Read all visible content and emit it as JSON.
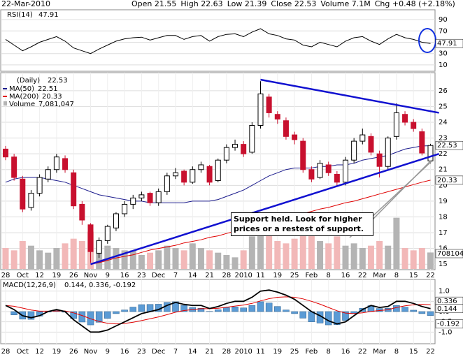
{
  "header": {
    "date": "22-Mar-2010",
    "items": [
      {
        "label": "Open",
        "value": 21.55
      },
      {
        "label": "High",
        "value": 22.63
      },
      {
        "label": "Low",
        "value": 21.39
      },
      {
        "label": "Close",
        "value": 22.53
      },
      {
        "label": "Volume",
        "value": "7.1M"
      },
      {
        "label": "Chg",
        "value": "+0.48 (+2.18%)"
      }
    ]
  },
  "chart_data": {
    "type": "stock",
    "categories": [
      "28",
      null,
      "Oct",
      null,
      "12",
      null,
      "19",
      null,
      "26",
      null,
      "Nov",
      null,
      "9",
      null,
      "16",
      null,
      "23",
      null,
      "Dec",
      null,
      "7",
      null,
      "14",
      null,
      "21",
      null,
      "28",
      null,
      "2010",
      null,
      "11",
      null,
      "19",
      null,
      "25",
      null,
      "Feb",
      null,
      "8",
      null,
      "16",
      null,
      "22",
      null,
      "Mar",
      null,
      "8",
      null,
      "15",
      null,
      "22"
    ],
    "rsi": {
      "label": "RSI(14)",
      "value": 47.91,
      "color": "#000000",
      "ylim": [
        0,
        100
      ],
      "yticks": [
        10,
        30,
        50,
        70,
        90
      ],
      "values": [
        55,
        45,
        35,
        42,
        50,
        55,
        60,
        52,
        40,
        35,
        30,
        38,
        45,
        52,
        56,
        58,
        59,
        54,
        58,
        62,
        62,
        55,
        60,
        62,
        52,
        60,
        64,
        65,
        60,
        68,
        74,
        65,
        62,
        56,
        54,
        45,
        42,
        50,
        46,
        42,
        52,
        58,
        60,
        52,
        46,
        56,
        64,
        58,
        55,
        50,
        47.91
      ]
    },
    "price": {
      "label": "(Daily)",
      "value": 22.53,
      "ylim": [
        14.7,
        27.1
      ],
      "yticks": [
        15,
        16,
        17,
        18,
        19,
        20,
        21,
        22,
        23,
        24,
        25,
        26
      ],
      "up_color": "#000000",
      "down_color": "#c8102e",
      "open": [
        22.3,
        21.8,
        20.4,
        18.6,
        19.5,
        20.4,
        21.0,
        21.7,
        20.8,
        18.8,
        17.5,
        15.7,
        16.5,
        17.3,
        18.2,
        18.8,
        19.2,
        19.5,
        18.9,
        19.6,
        20.6,
        20.9,
        20.2,
        21.0,
        21.2,
        20.3,
        21.6,
        22.4,
        22.6,
        22.1,
        23.8,
        25.6,
        24.5,
        24.1,
        23.2,
        22.8,
        21.0,
        20.5,
        21.3,
        20.7,
        20.2,
        21.6,
        22.8,
        23.1,
        22.0,
        21.2,
        23.1,
        24.5,
        24.0,
        23.4,
        21.55
      ],
      "high": [
        22.5,
        22.0,
        20.6,
        19.7,
        20.7,
        21.2,
        22.0,
        21.9,
        21.0,
        19.0,
        17.6,
        16.7,
        17.5,
        18.3,
        19.0,
        19.4,
        19.6,
        19.6,
        19.8,
        20.8,
        21.1,
        21.0,
        21.2,
        21.5,
        21.3,
        21.7,
        22.6,
        22.9,
        22.8,
        24.0,
        26.6,
        25.8,
        24.7,
        24.3,
        23.4,
        23.0,
        21.2,
        21.6,
        21.5,
        20.9,
        21.8,
        23.0,
        23.6,
        23.3,
        22.2,
        23.1,
        25.2,
        24.7,
        24.2,
        23.6,
        22.63
      ],
      "low": [
        21.6,
        20.3,
        18.3,
        18.4,
        19.3,
        20.2,
        20.8,
        20.8,
        18.5,
        17.5,
        15.1,
        15.4,
        16.3,
        17.1,
        18.0,
        18.5,
        19.0,
        18.7,
        18.7,
        19.4,
        20.4,
        20.0,
        20.1,
        20.8,
        20.0,
        20.2,
        21.4,
        22.2,
        21.8,
        22.0,
        23.6,
        24.3,
        23.9,
        22.9,
        22.6,
        20.8,
        20.2,
        20.4,
        20.6,
        19.9,
        20.0,
        21.4,
        22.6,
        21.9,
        20.5,
        21.0,
        22.9,
        23.8,
        23.4,
        21.9,
        21.39
      ],
      "close": [
        21.8,
        20.5,
        18.5,
        19.5,
        20.5,
        21.0,
        21.8,
        21.0,
        18.7,
        17.8,
        15.8,
        16.5,
        17.4,
        18.2,
        18.8,
        19.2,
        19.4,
        18.9,
        19.6,
        20.6,
        20.8,
        20.2,
        21.0,
        21.3,
        20.2,
        21.6,
        22.4,
        22.6,
        22.0,
        23.8,
        25.8,
        24.6,
        24.2,
        23.1,
        22.9,
        21.0,
        20.4,
        21.4,
        20.8,
        20.2,
        21.6,
        22.8,
        23.2,
        22.1,
        21.2,
        23.0,
        24.6,
        24.0,
        23.6,
        22.05,
        22.53
      ]
    },
    "ma50": {
      "name": "MA(50)",
      "value": 22.51,
      "color": "#1a1a8c",
      "values": [
        20.2,
        20.4,
        20.5,
        20.5,
        20.5,
        20.4,
        20.3,
        20.2,
        20.0,
        19.8,
        19.6,
        19.4,
        19.3,
        19.2,
        19.1,
        19.0,
        19.0,
        18.9,
        18.9,
        18.9,
        18.9,
        18.9,
        19.0,
        19.0,
        19.0,
        19.1,
        19.3,
        19.5,
        19.7,
        20.0,
        20.3,
        20.6,
        20.8,
        21.0,
        21.1,
        21.1,
        21.1,
        21.2,
        21.2,
        21.3,
        21.3,
        21.4,
        21.6,
        21.7,
        21.8,
        21.9,
        22.1,
        22.3,
        22.4,
        22.5,
        22.51
      ]
    },
    "ma200": {
      "name": "MA(200)",
      "value": 20.33,
      "color": "#e00000",
      "values": [
        null,
        null,
        null,
        null,
        null,
        null,
        null,
        null,
        null,
        null,
        15.0,
        15.1,
        15.25,
        15.4,
        15.5,
        15.6,
        15.75,
        15.9,
        16.0,
        16.1,
        16.2,
        16.35,
        16.45,
        16.55,
        16.7,
        16.8,
        16.95,
        17.1,
        17.25,
        17.4,
        17.55,
        17.7,
        17.85,
        17.95,
        18.1,
        18.2,
        18.35,
        18.5,
        18.6,
        18.75,
        18.9,
        19.0,
        19.15,
        19.3,
        19.45,
        19.6,
        19.75,
        19.9,
        20.05,
        20.2,
        20.33
      ]
    },
    "volume": {
      "name": "Volume",
      "value_label": "7,081,047",
      "up_color": "#b4b4b4",
      "down_color": "#f2b8b8",
      "ylim": [
        0,
        30000000
      ],
      "values": [
        9000000,
        8000000,
        12000000,
        10000000,
        8000000,
        7000000,
        9000000,
        11000000,
        13000000,
        12000000,
        16000000,
        12000000,
        10000000,
        9000000,
        8000000,
        8000000,
        6000000,
        7000000,
        8000000,
        10000000,
        9000000,
        8000000,
        11000000,
        9000000,
        8000000,
        7000000,
        6000000,
        5000000,
        8000000,
        14000000,
        18000000,
        15000000,
        12000000,
        11000000,
        13000000,
        18000000,
        16000000,
        12000000,
        11000000,
        14000000,
        10000000,
        11000000,
        9000000,
        10000000,
        12000000,
        10000000,
        22000000,
        9000000,
        8000000,
        9000000,
        7081047
      ]
    },
    "macd": {
      "label": "MACD(12,26,9)",
      "value_label": "0.144, 0.336, -0.192",
      "ylim": [
        -1.5,
        1.5
      ],
      "yticks": [
        {
          "value": 1,
          "label": "1.0"
        },
        0.5,
        {
          "value": 0,
          "label": "0.0"
        },
        -0.5,
        {
          "value": -1,
          "label": "-1.0"
        }
      ],
      "tags": [
        0.336,
        0.144,
        -0.192
      ],
      "line": {
        "color": "#000000",
        "values": [
          0.3,
          0.1,
          -0.2,
          -0.3,
          -0.2,
          0.0,
          0.1,
          0.0,
          -0.4,
          -0.7,
          -1.0,
          -1.0,
          -0.9,
          -0.7,
          -0.5,
          -0.3,
          -0.1,
          0.0,
          0.1,
          0.3,
          0.45,
          0.35,
          0.3,
          0.3,
          0.15,
          0.25,
          0.4,
          0.5,
          0.5,
          0.7,
          1.0,
          1.05,
          0.95,
          0.8,
          0.6,
          0.3,
          0.0,
          -0.2,
          -0.45,
          -0.6,
          -0.5,
          -0.2,
          0.1,
          0.3,
          0.2,
          0.25,
          0.5,
          0.5,
          0.4,
          0.25,
          0.144
        ]
      },
      "signal": {
        "color": "#e00000",
        "values": [
          0.3,
          0.26,
          0.17,
          0.08,
          0.02,
          0.02,
          0.03,
          0.03,
          -0.06,
          -0.19,
          -0.35,
          -0.48,
          -0.57,
          -0.6,
          -0.58,
          -0.52,
          -0.44,
          -0.35,
          -0.26,
          -0.15,
          -0.03,
          0.05,
          0.1,
          0.14,
          0.14,
          0.16,
          0.21,
          0.27,
          0.32,
          0.4,
          0.52,
          0.63,
          0.7,
          0.72,
          0.7,
          0.62,
          0.5,
          0.36,
          0.2,
          0.04,
          -0.07,
          -0.1,
          -0.06,
          0.01,
          0.05,
          0.09,
          0.2,
          0.28,
          0.33,
          0.35,
          0.336
        ]
      },
      "histogram": {
        "color": "#5b9bd5",
        "values": [
          0,
          -0.16,
          -0.37,
          -0.38,
          -0.22,
          -0.02,
          0.07,
          -0.03,
          -0.34,
          -0.51,
          -0.65,
          -0.52,
          -0.33,
          -0.1,
          0.08,
          0.22,
          0.34,
          0.35,
          0.36,
          0.45,
          0.48,
          0.3,
          0.2,
          0.16,
          0.01,
          0.09,
          0.19,
          0.23,
          0.18,
          0.3,
          0.48,
          0.42,
          0.25,
          0.08,
          -0.1,
          -0.32,
          -0.5,
          -0.56,
          -0.65,
          -0.64,
          -0.43,
          -0.1,
          0.16,
          0.29,
          0.15,
          0.16,
          0.3,
          0.22,
          0.07,
          -0.1,
          -0.192
        ]
      }
    },
    "trendlines": {
      "color": "#1010d0",
      "lines": [
        {
          "x": [
            30,
            51
          ],
          "y": [
            26.7,
            24.6
          ]
        },
        {
          "x": [
            10,
            51
          ],
          "y": [
            15.0,
            22.0
          ]
        }
      ]
    },
    "annotation": "Support held. Look for higher prices or a restest of support."
  }
}
